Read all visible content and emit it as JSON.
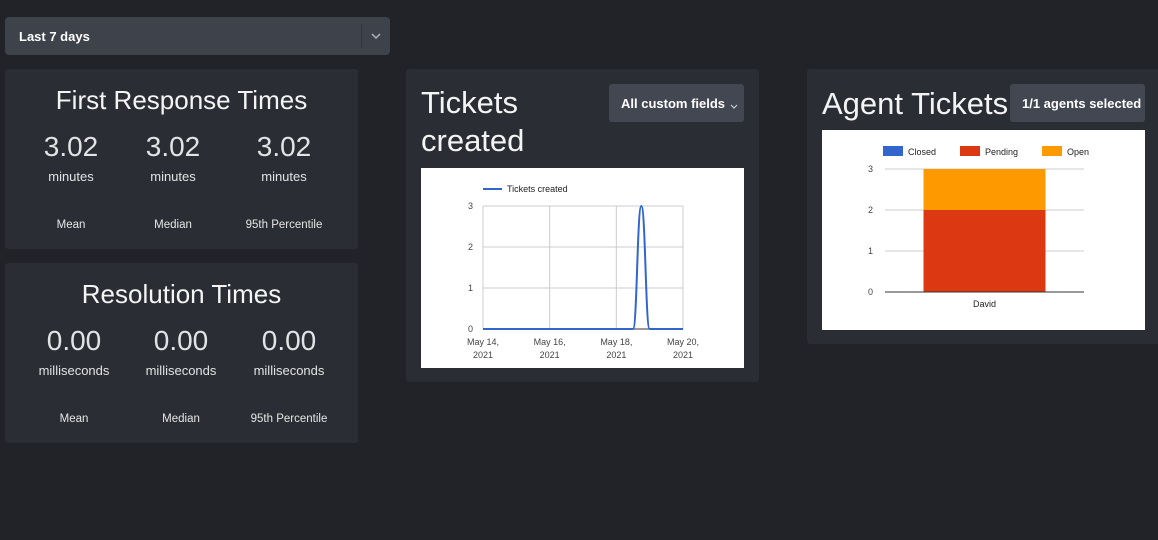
{
  "filters": {
    "date_range": "Last 7 days"
  },
  "first_response": {
    "title": "First Response Times",
    "stats": [
      {
        "value": "3.02",
        "unit": "minutes",
        "label": "Mean"
      },
      {
        "value": "3.02",
        "unit": "minutes",
        "label": "Median"
      },
      {
        "value": "3.02",
        "unit": "minutes",
        "label": "95th Percentile"
      }
    ]
  },
  "resolution": {
    "title": "Resolution Times",
    "stats": [
      {
        "value": "0.00",
        "unit": "milliseconds",
        "label": "Mean"
      },
      {
        "value": "0.00",
        "unit": "milliseconds",
        "label": "Median"
      },
      {
        "value": "0.00",
        "unit": "milliseconds",
        "label": "95th Percentile"
      }
    ]
  },
  "tickets_created": {
    "title_line1": "Tickets",
    "title_line2": "created",
    "filter_label": "All custom fields"
  },
  "agent_tickets": {
    "title": "Agent Tickets",
    "filter_label": "1/1 agents selected"
  },
  "chart_data": [
    {
      "type": "line",
      "legend": "top",
      "series": [
        {
          "name": "Tickets created",
          "color": "#3366cc",
          "points": [
            [
              "2021-05-14",
              0
            ],
            [
              "2021-05-15",
              0
            ],
            [
              "2021-05-16",
              0
            ],
            [
              "2021-05-17",
              0
            ],
            [
              "2021-05-18",
              0
            ],
            [
              "2021-05-18T12:00",
              0
            ],
            [
              "2021-05-18T18:00",
              3
            ],
            [
              "2021-05-19",
              0
            ],
            [
              "2021-05-20",
              0
            ]
          ]
        }
      ],
      "x_ticks": [
        [
          "May 14,",
          "2021"
        ],
        [
          "May 16,",
          "2021"
        ],
        [
          "May 18,",
          "2021"
        ],
        [
          "May 20,",
          "2021"
        ]
      ],
      "ylim": [
        0,
        3
      ],
      "y_ticks": [
        0,
        1,
        2,
        3
      ],
      "grid": true
    },
    {
      "type": "bar",
      "stacked": true,
      "legend": "top",
      "categories": [
        "David"
      ],
      "series": [
        {
          "name": "Closed",
          "color": "#3366cc",
          "values": [
            0
          ]
        },
        {
          "name": "Pending",
          "color": "#dc3912",
          "values": [
            2
          ]
        },
        {
          "name": "Open",
          "color": "#ff9900",
          "values": [
            1
          ]
        }
      ],
      "ylim": [
        0,
        3
      ],
      "y_ticks": [
        0,
        1,
        2,
        3
      ],
      "grid": true
    }
  ]
}
